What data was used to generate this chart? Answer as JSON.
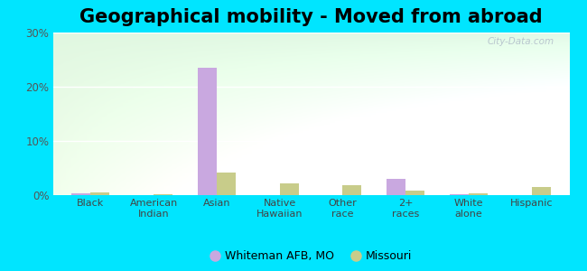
{
  "title": "Geographical mobility - Moved from abroad",
  "categories": [
    "Black",
    "American\nIndian",
    "Asian",
    "Native\nHawaiian",
    "Other\nrace",
    "2+\nraces",
    "White\nalone",
    "Hispanic"
  ],
  "whiteman_values": [
    0.3,
    0.0,
    23.5,
    0.0,
    0.0,
    3.0,
    0.1,
    0.0
  ],
  "missouri_values": [
    0.5,
    0.2,
    4.2,
    2.2,
    1.8,
    0.9,
    0.3,
    1.5
  ],
  "whiteman_color": "#c9a8e0",
  "missouri_color": "#c8cc8a",
  "ylim": [
    0,
    30
  ],
  "yticks": [
    0,
    10,
    20,
    30
  ],
  "ytick_labels": [
    "0%",
    "10%",
    "20%",
    "30%"
  ],
  "outer_bg": "#00e5ff",
  "title_fontsize": 15,
  "legend_whiteman": "Whiteman AFB, MO",
  "legend_missouri": "Missouri",
  "bar_width": 0.3
}
